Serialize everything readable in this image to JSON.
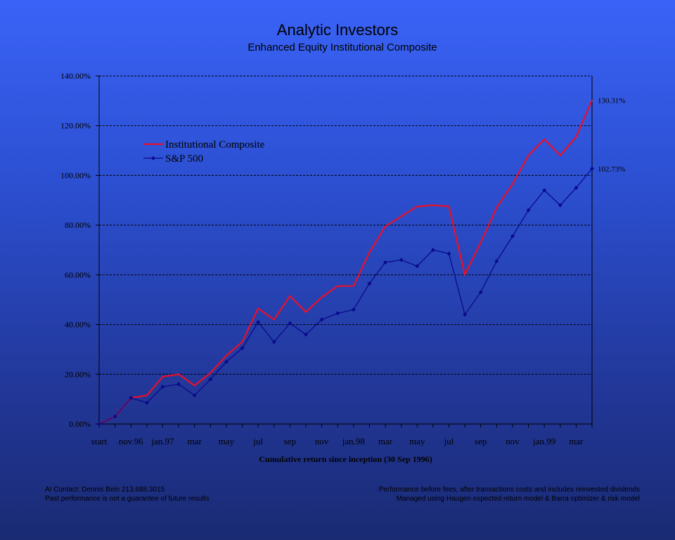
{
  "header": {
    "title": "Analytic Investors",
    "subtitle": "Enhanced Equity Institutional Composite"
  },
  "footer": {
    "left": [
      "AI Contact: Dennis Bein 213.688.3015",
      "Past performance is not a guarantee of future results"
    ],
    "right": [
      "Performance before fees, after transactions costs and includes reinvested dividends",
      "Managed using Haugen expected return model & Barra optimizer & risk model"
    ]
  },
  "chart_data": {
    "type": "line",
    "title": "Analytic Investors",
    "subtitle": "Enhanced Equity Institutional Composite",
    "xlabel": "Cumulative return since inception (30 Sep 1996)",
    "ylabel": "",
    "ylim": [
      0,
      140
    ],
    "y_ticks": [
      "0.00%",
      "20.00%",
      "40.00%",
      "60.00%",
      "80.00%",
      "100.00%",
      "120.00%",
      "140.00%"
    ],
    "x_tick_labels": [
      "start",
      "nov.96",
      "jan.97",
      "mar",
      "may",
      "jul",
      "sep",
      "nov",
      "jan.98",
      "mar",
      "may",
      "jul",
      "sep",
      "nov",
      "jan.99",
      "mar"
    ],
    "grid": true,
    "legend_placement": "top-left",
    "colors": {
      "composite": "#e8102a",
      "sp500": "#0a0a8c"
    },
    "series": [
      {
        "name": "Institutional Composite",
        "values": [
          0,
          3,
          10.5,
          11.5,
          19,
          20,
          15.5,
          20.5,
          27.5,
          33,
          46.5,
          42,
          51.5,
          45,
          51,
          55.5,
          55.5,
          69,
          79.5,
          83.5,
          87.5,
          88,
          87.5,
          60,
          73,
          87,
          96.5,
          108,
          114.5,
          108,
          115.5,
          130.31
        ]
      },
      {
        "name": "S&P 500",
        "values": [
          0,
          3,
          10.5,
          8.5,
          15,
          16,
          11.5,
          18,
          25,
          30.5,
          41,
          33,
          40.5,
          36,
          42,
          44.5,
          46,
          56.5,
          65,
          66,
          63.5,
          70,
          68.5,
          44,
          53,
          65.5,
          75.5,
          86,
          94,
          88,
          95,
          102.73
        ]
      }
    ],
    "end_labels": [
      "130.31%",
      "102.73%"
    ]
  }
}
